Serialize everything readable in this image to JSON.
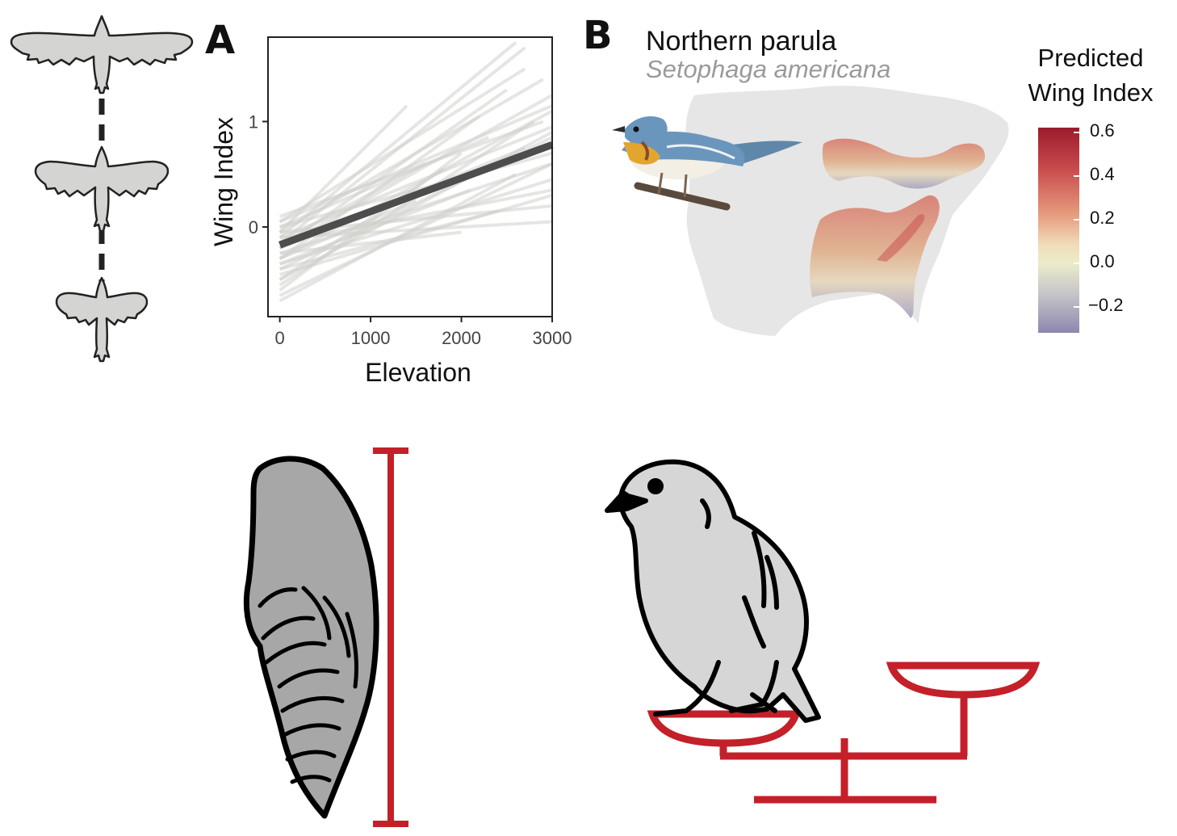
{
  "panels": {
    "a": "A",
    "b": "B"
  },
  "species": {
    "common": "Northern parula",
    "latin": "Setophaga americana"
  },
  "legend": {
    "title_line1": "Predicted",
    "title_line2": "Wing Index",
    "ticks": [
      "0.6",
      "0.4",
      "0.2",
      "0.0",
      "−0.2"
    ]
  },
  "chart_data": {
    "type": "line",
    "title": "",
    "xlabel": "Elevation",
    "ylabel": "Wing Index",
    "xlim": [
      -130,
      3000
    ],
    "ylim": [
      -0.85,
      1.8
    ],
    "x_ticks": [
      0,
      1000,
      2000,
      3000
    ],
    "y_ticks": [
      0,
      1
    ],
    "grid": false,
    "mean_series": {
      "x": [
        0,
        3000
      ],
      "y": [
        -0.17,
        0.78
      ]
    },
    "background_series": [
      {
        "x": [
          0,
          1400
        ],
        "y": [
          -0.05,
          1.15
        ]
      },
      {
        "x": [
          0,
          2600
        ],
        "y": [
          -0.1,
          1.75
        ]
      },
      {
        "x": [
          0,
          2700
        ],
        "y": [
          -0.15,
          1.7
        ]
      },
      {
        "x": [
          0,
          2700
        ],
        "y": [
          0.05,
          1.5
        ]
      },
      {
        "x": [
          0,
          3000
        ],
        "y": [
          -0.2,
          1.25
        ]
      },
      {
        "x": [
          0,
          3000
        ],
        "y": [
          -0.3,
          1.1
        ]
      },
      {
        "x": [
          0,
          3000
        ],
        "y": [
          -0.1,
          0.95
        ]
      },
      {
        "x": [
          0,
          3000
        ],
        "y": [
          -0.4,
          0.85
        ]
      },
      {
        "x": [
          0,
          3000
        ],
        "y": [
          0.0,
          0.7
        ]
      },
      {
        "x": [
          0,
          3000
        ],
        "y": [
          -0.25,
          0.6
        ]
      },
      {
        "x": [
          0,
          3000
        ],
        "y": [
          -0.35,
          0.45
        ]
      },
      {
        "x": [
          0,
          3000
        ],
        "y": [
          -0.15,
          0.35
        ]
      },
      {
        "x": [
          0,
          3000
        ],
        "y": [
          -0.05,
          0.2
        ]
      },
      {
        "x": [
          0,
          3000
        ],
        "y": [
          -0.45,
          0.3
        ]
      },
      {
        "x": [
          0,
          3000
        ],
        "y": [
          -0.1,
          0.05
        ]
      },
      {
        "x": [
          0,
          2500
        ],
        "y": [
          -0.2,
          1.3
        ]
      },
      {
        "x": [
          0,
          2800
        ],
        "y": [
          -0.55,
          1.0
        ]
      },
      {
        "x": [
          0,
          2000
        ],
        "y": [
          -0.6,
          0.7
        ]
      },
      {
        "x": [
          0,
          2200
        ],
        "y": [
          -0.3,
          1.05
        ]
      },
      {
        "x": [
          0,
          2600
        ],
        "y": [
          -0.7,
          0.5
        ]
      },
      {
        "x": [
          0,
          1800
        ],
        "y": [
          -0.5,
          0.55
        ]
      },
      {
        "x": [
          0,
          2900
        ],
        "y": [
          0.1,
          1.0
        ]
      },
      {
        "x": [
          0,
          2400
        ],
        "y": [
          -0.4,
          0.15
        ]
      },
      {
        "x": [
          0,
          2000
        ],
        "y": [
          -0.25,
          -0.05
        ]
      },
      {
        "x": [
          0,
          3000
        ],
        "y": [
          -0.65,
          0.6
        ]
      },
      {
        "x": [
          0,
          2300
        ],
        "y": [
          0.0,
          0.85
        ]
      },
      {
        "x": [
          0,
          1600
        ],
        "y": [
          -0.15,
          0.6
        ]
      },
      {
        "x": [
          0,
          2900
        ],
        "y": [
          -0.05,
          1.4
        ]
      },
      {
        "x": [
          0,
          3000
        ],
        "y": [
          -0.5,
          0.9
        ]
      },
      {
        "x": [
          0,
          2100
        ],
        "y": [
          -0.35,
          0.35
        ]
      },
      {
        "x": [
          0,
          2700
        ],
        "y": [
          -0.2,
          0.75
        ]
      },
      {
        "x": [
          0,
          1500
        ],
        "y": [
          -0.3,
          0.25
        ]
      },
      {
        "x": [
          0,
          3000
        ],
        "y": [
          0.05,
          1.15
        ]
      }
    ]
  }
}
